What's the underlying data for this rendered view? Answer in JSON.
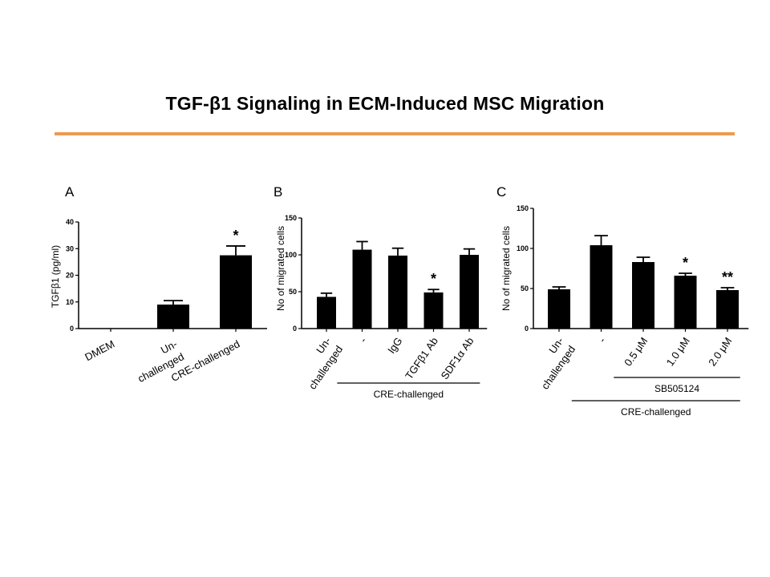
{
  "title": "TGF-β1 Signaling in ECM-Induced MSC Migration",
  "colors": {
    "rule": "#ed9b4e",
    "bars": "#000000"
  },
  "chart_data": [
    {
      "panel": "A",
      "type": "bar",
      "ylabel": "TGFβ1 (pg/ml)",
      "ylim": [
        0,
        40
      ],
      "yticks": [
        0,
        10,
        20,
        30,
        40
      ],
      "category_labels": [
        [
          "DMEM"
        ],
        [
          "Un-",
          "challenged"
        ],
        [
          "CRE-challenged"
        ]
      ],
      "values": [
        0,
        9,
        27.5
      ],
      "errors": [
        0,
        1.5,
        3.5
      ],
      "significance": [
        "",
        "",
        "*"
      ],
      "group_labels": []
    },
    {
      "panel": "B",
      "type": "bar",
      "ylabel": "No of migrated cells",
      "ylim": [
        0,
        150
      ],
      "yticks": [
        0,
        50,
        100,
        150
      ],
      "category_labels": [
        [
          "Un-",
          "challenged"
        ],
        [
          "-"
        ],
        [
          "IgG"
        ],
        [
          "TGFβ1 Ab"
        ],
        [
          "SDF1α Ab"
        ]
      ],
      "values": [
        43,
        107,
        99,
        49,
        100
      ],
      "errors": [
        5,
        11,
        10,
        4,
        8
      ],
      "significance": [
        "",
        "",
        "",
        "*",
        ""
      ],
      "group_labels": [
        {
          "text": "CRE-challenged",
          "from": 1,
          "to": 4
        }
      ]
    },
    {
      "panel": "C",
      "type": "bar",
      "ylabel": "No of migrated cells",
      "ylim": [
        0,
        150
      ],
      "yticks": [
        0,
        50,
        100,
        150
      ],
      "category_labels": [
        [
          "Un-",
          "challenged"
        ],
        [
          "-"
        ],
        [
          "0.5 μM"
        ],
        [
          "1.0 μM"
        ],
        [
          "2.0 μM"
        ]
      ],
      "values": [
        49,
        104,
        83,
        66,
        48
      ],
      "errors": [
        3,
        12,
        6,
        3,
        3
      ],
      "significance": [
        "",
        "",
        "",
        "*",
        "**"
      ],
      "group_labels": [
        {
          "text": "SB505124",
          "from": 2,
          "to": 4
        },
        {
          "text": "CRE-challenged",
          "from": 1,
          "to": 4
        }
      ]
    }
  ]
}
